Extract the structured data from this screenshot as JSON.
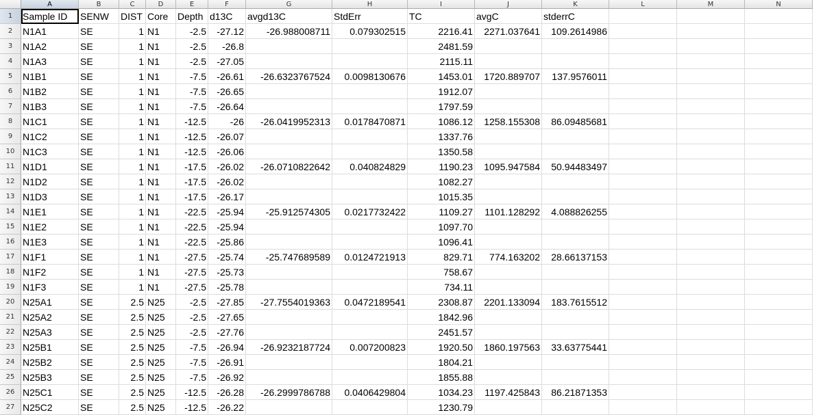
{
  "sheet": {
    "active_cell": "A1",
    "columns": [
      "A",
      "B",
      "C",
      "D",
      "E",
      "F",
      "G",
      "H",
      "I",
      "J",
      "K",
      "L",
      "M",
      "N"
    ],
    "row_numbers": [
      "1",
      "2",
      "3",
      "4",
      "5",
      "6",
      "7",
      "8",
      "9",
      "10",
      "11",
      "12",
      "13",
      "14",
      "15",
      "16",
      "17",
      "18",
      "19",
      "20",
      "21",
      "22",
      "23",
      "24",
      "25",
      "26",
      "27"
    ],
    "rows": [
      [
        "Sample ID",
        "SENW",
        "DIST",
        "Core",
        "Depth",
        "d13C",
        "avgd13C",
        "StdErr",
        "TC",
        "avgC",
        "stderrC"
      ],
      [
        "N1A1",
        "SE",
        "1",
        "N1",
        "-2.5",
        "-27.12",
        "-26.988008711",
        "0.079302515",
        "2216.41",
        "2271.037641",
        "109.2614986"
      ],
      [
        "N1A2",
        "SE",
        "1",
        "N1",
        "-2.5",
        "-26.8",
        "",
        "",
        "2481.59",
        "",
        ""
      ],
      [
        "N1A3",
        "SE",
        "1",
        "N1",
        "-2.5",
        "-27.05",
        "",
        "",
        "2115.11",
        "",
        ""
      ],
      [
        "N1B1",
        "SE",
        "1",
        "N1",
        "-7.5",
        "-26.61",
        "-26.6323767524",
        "0.0098130676",
        "1453.01",
        "1720.889707",
        "137.9576011"
      ],
      [
        "N1B2",
        "SE",
        "1",
        "N1",
        "-7.5",
        "-26.65",
        "",
        "",
        "1912.07",
        "",
        ""
      ],
      [
        "N1B3",
        "SE",
        "1",
        "N1",
        "-7.5",
        "-26.64",
        "",
        "",
        "1797.59",
        "",
        ""
      ],
      [
        "N1C1",
        "SE",
        "1",
        "N1",
        "-12.5",
        "-26",
        "-26.0419952313",
        "0.0178470871",
        "1086.12",
        "1258.155308",
        "86.09485681"
      ],
      [
        "N1C2",
        "SE",
        "1",
        "N1",
        "-12.5",
        "-26.07",
        "",
        "",
        "1337.76",
        "",
        ""
      ],
      [
        "N1C3",
        "SE",
        "1",
        "N1",
        "-12.5",
        "-26.06",
        "",
        "",
        "1350.58",
        "",
        ""
      ],
      [
        "N1D1",
        "SE",
        "1",
        "N1",
        "-17.5",
        "-26.02",
        "-26.0710822642",
        "0.040824829",
        "1190.23",
        "1095.947584",
        "50.94483497"
      ],
      [
        "N1D2",
        "SE",
        "1",
        "N1",
        "-17.5",
        "-26.02",
        "",
        "",
        "1082.27",
        "",
        ""
      ],
      [
        "N1D3",
        "SE",
        "1",
        "N1",
        "-17.5",
        "-26.17",
        "",
        "",
        "1015.35",
        "",
        ""
      ],
      [
        "N1E1",
        "SE",
        "1",
        "N1",
        "-22.5",
        "-25.94",
        "-25.912574305",
        "0.0217732422",
        "1109.27",
        "1101.128292",
        "4.088826255"
      ],
      [
        "N1E2",
        "SE",
        "1",
        "N1",
        "-22.5",
        "-25.94",
        "",
        "",
        "1097.70",
        "",
        ""
      ],
      [
        "N1E3",
        "SE",
        "1",
        "N1",
        "-22.5",
        "-25.86",
        "",
        "",
        "1096.41",
        "",
        ""
      ],
      [
        "N1F1",
        "SE",
        "1",
        "N1",
        "-27.5",
        "-25.74",
        "-25.747689589",
        "0.0124721913",
        "829.71",
        "774.163202",
        "28.66137153"
      ],
      [
        "N1F2",
        "SE",
        "1",
        "N1",
        "-27.5",
        "-25.73",
        "",
        "",
        "758.67",
        "",
        ""
      ],
      [
        "N1F3",
        "SE",
        "1",
        "N1",
        "-27.5",
        "-25.78",
        "",
        "",
        "734.11",
        "",
        ""
      ],
      [
        "N25A1",
        "SE",
        "2.5",
        "N25",
        "-2.5",
        "-27.85",
        "-27.7554019363",
        "0.0472189541",
        "2308.87",
        "2201.133094",
        "183.7615512"
      ],
      [
        "N25A2",
        "SE",
        "2.5",
        "N25",
        "-2.5",
        "-27.65",
        "",
        "",
        "1842.96",
        "",
        ""
      ],
      [
        "N25A3",
        "SE",
        "2.5",
        "N25",
        "-2.5",
        "-27.76",
        "",
        "",
        "2451.57",
        "",
        ""
      ],
      [
        "N25B1",
        "SE",
        "2.5",
        "N25",
        "-7.5",
        "-26.94",
        "-26.9232187724",
        "0.007200823",
        "1920.50",
        "1860.197563",
        "33.63775441"
      ],
      [
        "N25B2",
        "SE",
        "2.5",
        "N25",
        "-7.5",
        "-26.91",
        "",
        "",
        "1804.21",
        "",
        ""
      ],
      [
        "N25B3",
        "SE",
        "2.5",
        "N25",
        "-7.5",
        "-26.92",
        "",
        "",
        "1855.88",
        "",
        ""
      ],
      [
        "N25C1",
        "SE",
        "2.5",
        "N25",
        "-12.5",
        "-26.28",
        "-26.2999786788",
        "0.0406429804",
        "1034.23",
        "1197.425843",
        "86.21871353"
      ],
      [
        "N25C2",
        "SE",
        "2.5",
        "N25",
        "-12.5",
        "-26.22",
        "",
        "",
        "1230.79",
        "",
        ""
      ]
    ]
  }
}
